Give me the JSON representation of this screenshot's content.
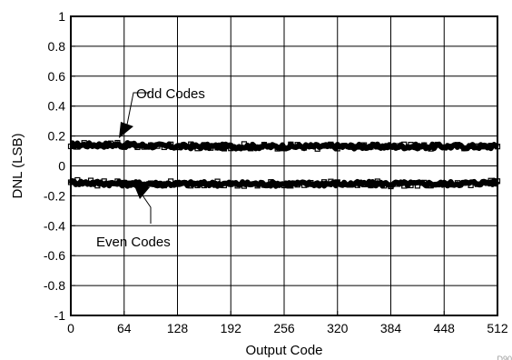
{
  "chart_data": {
    "type": "line",
    "title": "",
    "xlabel": "Output Code",
    "ylabel": "DNL (LSB)",
    "xlim": [
      0,
      512
    ],
    "ylim": [
      -1,
      1
    ],
    "x_ticks": [
      0,
      64,
      128,
      192,
      256,
      320,
      384,
      448,
      512
    ],
    "y_ticks": [
      1,
      0.8,
      0.6,
      0.4,
      0.2,
      0,
      -0.2,
      -0.4,
      -0.6,
      -0.8,
      -1
    ],
    "y_tick_labels": [
      "1",
      "0.8",
      "0.6",
      "0.4",
      "0.2",
      "0",
      "-0.2",
      "-0.4",
      "-0.6",
      "-0.8",
      "-1"
    ],
    "grid": true,
    "series": [
      {
        "name": "",
        "color": "#000000",
        "x": [
          0,
          64,
          128,
          192,
          256,
          320,
          384,
          448,
          512
        ],
        "values": [
          0.14,
          0.14,
          0.13,
          0.13,
          0.13,
          0.13,
          0.13,
          0.13,
          0.13
        ]
      },
      {
        "name": "",
        "color": "#000000",
        "x": [
          0,
          64,
          128,
          192,
          256,
          320,
          384,
          448,
          512
        ],
        "values": [
          -0.11,
          -0.12,
          -0.12,
          -0.12,
          -0.12,
          -0.12,
          -0.12,
          -0.12,
          -0.11
        ]
      }
    ],
    "annotations": [
      {
        "text": "Odd Codes",
        "target_series": 0
      },
      {
        "text": "Even Codes",
        "target_series": 1
      }
    ],
    "corner_mark": "D90"
  }
}
